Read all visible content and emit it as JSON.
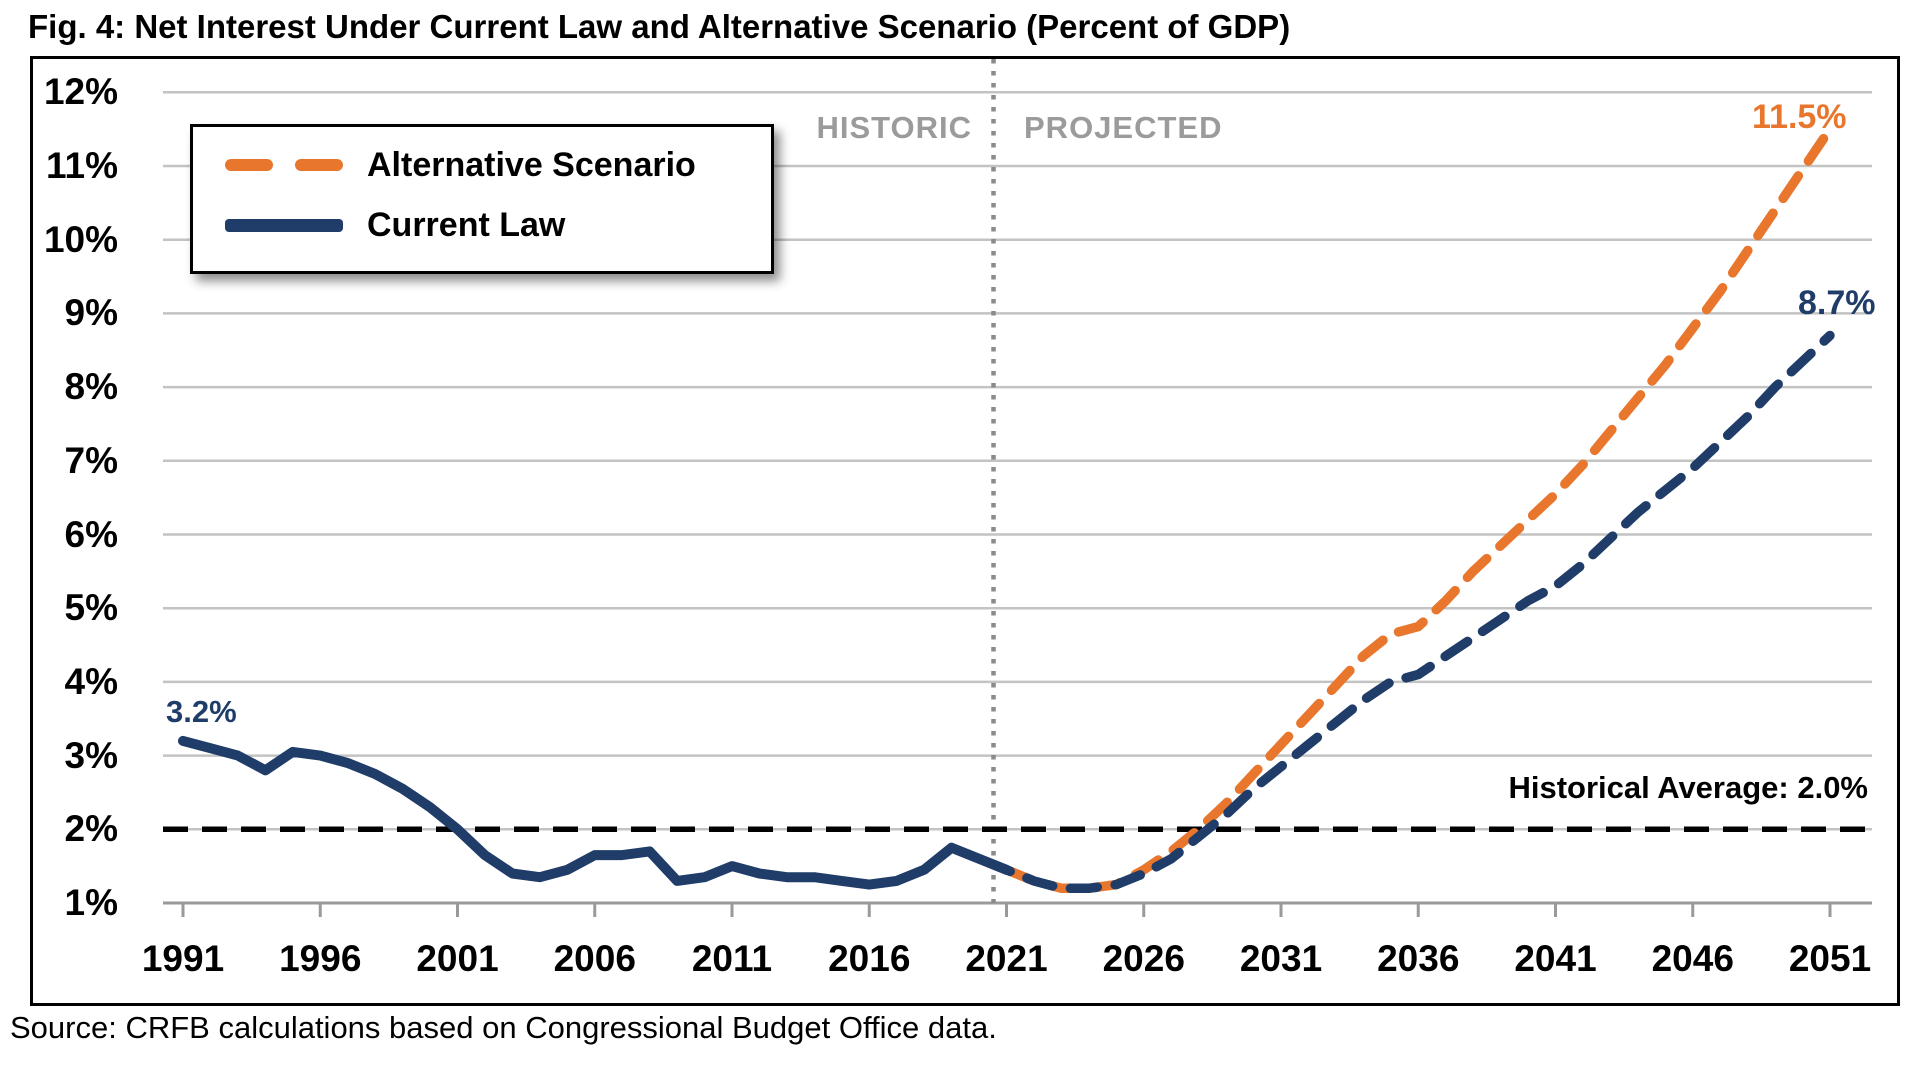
{
  "title": "Fig. 4: Net Interest Under Current Law and Alternative Scenario (Percent of GDP)",
  "source": "Source: CRFB calculations based on Congressional Budget Office data.",
  "legend": {
    "items": [
      {
        "label": "Alternative Scenario",
        "style": "dashed",
        "color": "#e8762d"
      },
      {
        "label": "Current Law",
        "style": "solid",
        "color": "#1f3d68"
      }
    ]
  },
  "annotations": {
    "historic": "HISTORIC",
    "projected": "PROJECTED",
    "start_label": "3.2%",
    "alt_end_label": "11.5%",
    "current_end_label": "8.7%",
    "historical_average_label": "Historical Average: 2.0%"
  },
  "colors": {
    "current_law": "#1f3d68",
    "alternative": "#e8762d",
    "gridline": "#c3c3c3",
    "axis": "#9a9a9a",
    "divider": "#8a8a8a",
    "historical_average_line": "#000000",
    "section_text": "#9b9b9b"
  },
  "chart_data": {
    "type": "line",
    "title": "Fig. 4: Net Interest Under Current Law and Alternative Scenario (Percent of GDP)",
    "x_start_year": 1991,
    "x_end_year": 2051,
    "x_tick_years": [
      1991,
      1996,
      2001,
      2006,
      2011,
      2016,
      2021,
      2026,
      2031,
      2036,
      2041,
      2046,
      2051
    ],
    "y_ticks": [
      {
        "value": 12,
        "label": "12%"
      },
      {
        "value": 11,
        "label": "11%"
      },
      {
        "value": 10,
        "label": "10%"
      },
      {
        "value": 9,
        "label": "9%"
      },
      {
        "value": 8,
        "label": "8%"
      },
      {
        "value": 7,
        "label": "7%"
      },
      {
        "value": 6,
        "label": "6%"
      },
      {
        "value": 5,
        "label": "5%"
      },
      {
        "value": 4,
        "label": "4%"
      },
      {
        "value": 3,
        "label": "3%"
      },
      {
        "value": 2,
        "label": "2%"
      },
      {
        "value": 1,
        "label": "1%"
      }
    ],
    "ylim": [
      1,
      12
    ],
    "grid": true,
    "legend_position": "top-left",
    "projection_start_year": 2021,
    "historical_average_value": 2.0,
    "series": [
      {
        "name": "Current Law",
        "start_year": 1991,
        "values": [
          3.2,
          3.1,
          3.0,
          2.8,
          3.05,
          3.0,
          2.9,
          2.75,
          2.55,
          2.3,
          2.0,
          1.65,
          1.4,
          1.35,
          1.45,
          1.65,
          1.65,
          1.7,
          1.3,
          1.35,
          1.5,
          1.4,
          1.35,
          1.35,
          1.3,
          1.25,
          1.3,
          1.45,
          1.75,
          1.6,
          1.45,
          1.3,
          1.2,
          1.2,
          1.25,
          1.4,
          1.6,
          1.9,
          2.2,
          2.55,
          2.85,
          3.15,
          3.45,
          3.75,
          4.0,
          4.1,
          4.35,
          4.6,
          4.85,
          5.1,
          5.3,
          5.6,
          5.95,
          6.3,
          6.6,
          6.9,
          7.25,
          7.6,
          8.0,
          8.35,
          8.7
        ],
        "end_label": "8.7%"
      },
      {
        "name": "Alternative Scenario",
        "start_year": 2021,
        "values": [
          1.45,
          1.3,
          1.2,
          1.2,
          1.25,
          1.45,
          1.7,
          2.0,
          2.35,
          2.75,
          3.15,
          3.55,
          3.95,
          4.35,
          4.65,
          4.75,
          5.1,
          5.5,
          5.85,
          6.2,
          6.55,
          6.95,
          7.4,
          7.85,
          8.3,
          8.8,
          9.3,
          9.85,
          10.4,
          10.95,
          11.5
        ],
        "end_label": "11.5%"
      }
    ],
    "first_point_label": "3.2%"
  }
}
